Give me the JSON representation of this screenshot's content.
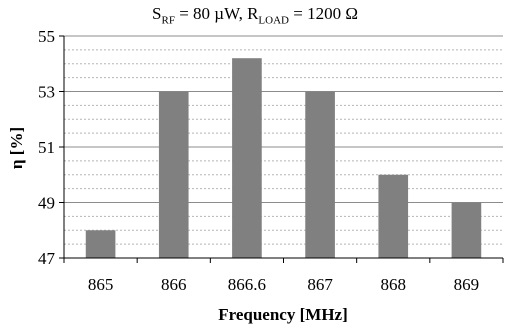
{
  "chart_data": {
    "type": "bar",
    "title": {
      "s_main": "S",
      "s_sub": "RF",
      "s_val": " = 80 µW, R",
      "r_sub": "LOAD",
      "r_val": " = 1200 Ω"
    },
    "xlabel": "Frequency [MHz]",
    "ylabel": "η [%]",
    "categories": [
      "865",
      "866",
      "866.6",
      "867",
      "868",
      "869"
    ],
    "values": [
      48,
      53,
      54.2,
      53,
      50,
      49
    ],
    "ylim": [
      47,
      55
    ],
    "yticks": [
      "47",
      "49",
      "51",
      "53",
      "55"
    ],
    "grid": true,
    "bar_color": "#808080"
  }
}
